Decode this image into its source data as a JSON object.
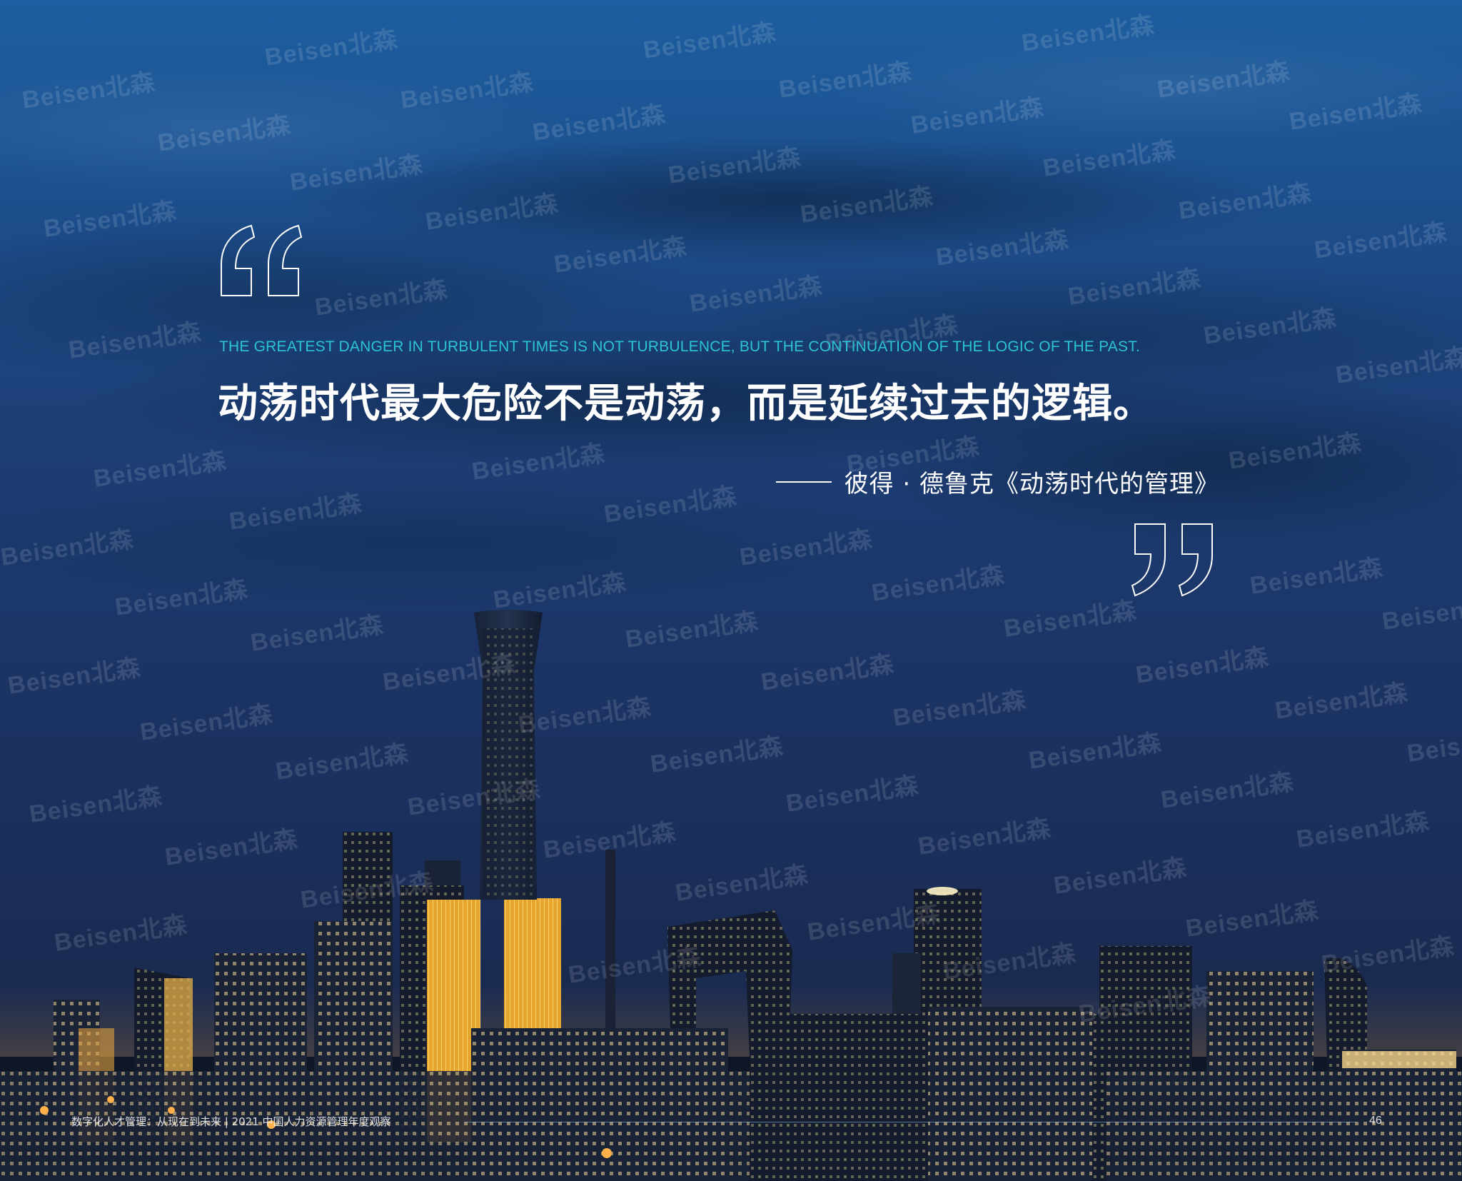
{
  "quote": {
    "english": "THE GREATEST DANGER IN TURBULENT TIMES IS NOT TURBULENCE, BUT THE CONTINUATION OF THE LOGIC OF THE PAST.",
    "chinese": "动荡时代最大危险不是动荡，而是延续过去的逻辑。",
    "attribution": "彼得 · 德鲁克《动荡时代的管理》",
    "open_mark_icon": "open-quote-outline",
    "close_mark_icon": "close-quote-outline"
  },
  "watermark": {
    "text": "Beisen北森"
  },
  "footer": {
    "text": "数字化人才管理：从现在到未来 | 2021 中国人力资源管理年度观察",
    "page_number": "46"
  },
  "colors": {
    "english_quote": "#2cc3d6",
    "chinese_quote": "#ffffff",
    "sky_top": "#1d5ea0",
    "sky_bottom": "#1a2a4f"
  }
}
